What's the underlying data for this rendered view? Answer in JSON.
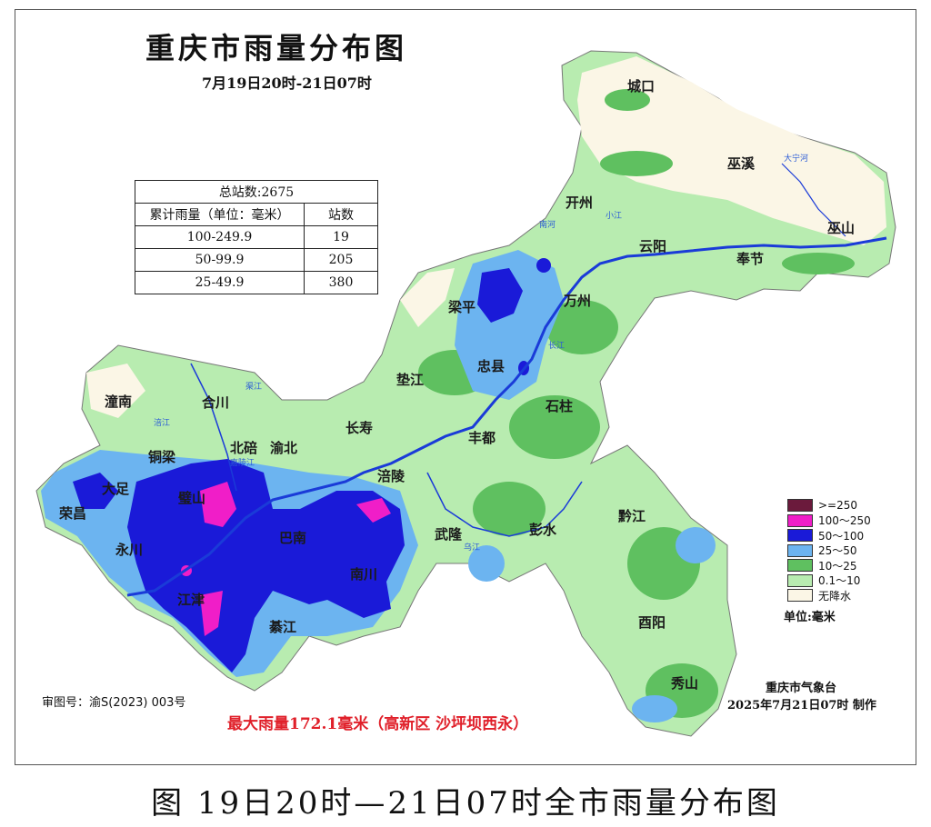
{
  "title": "重庆市雨量分布图",
  "subtitle": "7月19日20时-21日07时",
  "stats": {
    "total": "总站数:2675",
    "header_range": "累计雨量（单位：毫米）",
    "header_count": "站数",
    "rows": [
      {
        "range": "100-249.9",
        "count": "19"
      },
      {
        "range": "50-99.9",
        "count": "205"
      },
      {
        "range": "25-49.9",
        "count": "380"
      }
    ]
  },
  "legend": {
    "items": [
      {
        "label": ">=250",
        "color": "#6b1a3c"
      },
      {
        "label": "100～250",
        "color": "#f01ec8"
      },
      {
        "label": "50～100",
        "color": "#1a1ad8"
      },
      {
        "label": "25～50",
        "color": "#6cb4f0"
      },
      {
        "label": "10～25",
        "color": "#5fc060"
      },
      {
        "label": "0.1～10",
        "color": "#b8ecb0"
      },
      {
        "label": "无降水",
        "color": "#fbf6e6"
      }
    ],
    "unit": "单位:毫米"
  },
  "places": [
    "城口",
    "巫溪",
    "开州",
    "云阳",
    "巫山",
    "奉节",
    "梁平",
    "万州",
    "忠县",
    "垫江",
    "石柱",
    "潼南",
    "合川",
    "铜梁",
    "北碚",
    "渝北",
    "长寿",
    "丰都",
    "涪陵",
    "荣昌",
    "大足",
    "永川",
    "璧山",
    "江津",
    "巴南",
    "南川",
    "綦江",
    "武隆",
    "彭水",
    "黔江",
    "酉阳",
    "秀山"
  ],
  "rivers": [
    "大宁河",
    "南河",
    "小江",
    "长江",
    "涪江",
    "渠江",
    "嘉陵江",
    "乌江"
  ],
  "approval": "审图号：渝S(2023) 003号",
  "max_note": "最大雨量172.1毫米（高新区 沙坪坝西永）",
  "producer": "重庆市气象台",
  "produced": "2025年7月21日07时 制作",
  "caption": "图   19日20时—21日07时全市雨量分布图"
}
